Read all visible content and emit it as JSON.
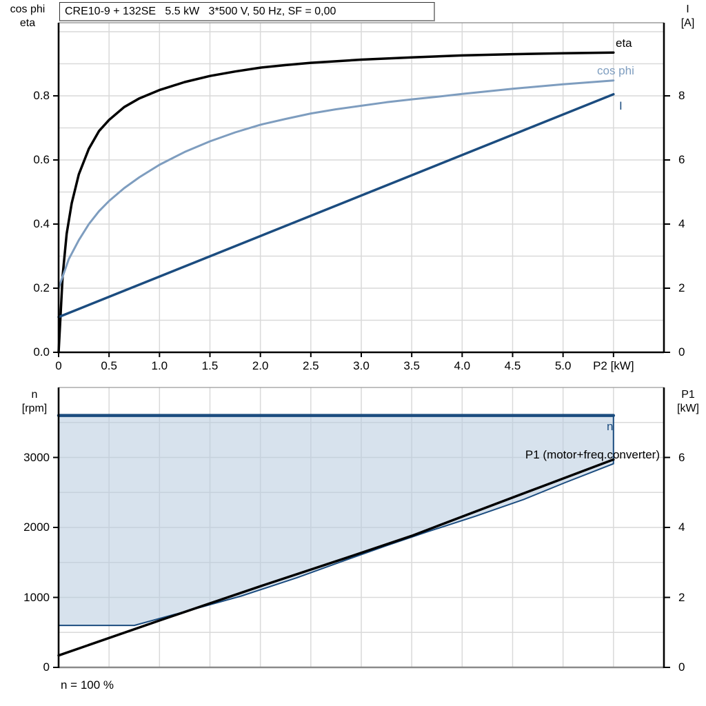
{
  "colors": {
    "black": "#000000",
    "steel_blue": "#7e9dbf",
    "dark_blue": "#1b4c7f",
    "area_fill": "#b7cbde",
    "gridline": "#d9d9d9",
    "frame_gray": "#9a9a9a"
  },
  "chart_data": [
    {
      "type": "line",
      "title": "CRE10-9 + 132SE   5.5 kW   3*500 V, 50 Hz, SF = 0,00",
      "x_axis": {
        "label": "P2 [kW]",
        "range": [
          0,
          6
        ],
        "grid_step": 0.5,
        "tick_values": [
          0,
          0.5,
          1.0,
          1.5,
          2.0,
          2.5,
          3.0,
          3.5,
          4.0,
          4.5,
          5.0
        ],
        "tick_labels": [
          "0",
          "0.5",
          "1.0",
          "1.5",
          "2.0",
          "2.5",
          "3.0",
          "3.5",
          "4.0",
          "4.5",
          "5.0"
        ],
        "axis_label_at": 5.5
      },
      "y_left": {
        "label_lines": [
          "cos phi",
          "eta"
        ],
        "range": [
          0,
          1.028
        ],
        "grid_step": 0.1,
        "tick_values": [
          0,
          0.2,
          0.4,
          0.6,
          0.8
        ],
        "tick_labels": [
          "0.0",
          "0.2",
          "0.4",
          "0.6",
          "0.8"
        ]
      },
      "y_right": {
        "label_lines": [
          "I",
          "[A]"
        ],
        "range": [
          0,
          10.28
        ],
        "grid_step": 1,
        "tick_values": [
          0,
          2,
          4,
          6,
          8
        ],
        "tick_labels": [
          "0",
          "2",
          "4",
          "6",
          "8"
        ]
      },
      "series": [
        {
          "name": "eta",
          "axis": "left",
          "color": "#000000",
          "width": 3.5,
          "points": [
            [
              0,
              0
            ],
            [
              0.04,
              0.24
            ],
            [
              0.08,
              0.37
            ],
            [
              0.13,
              0.465
            ],
            [
              0.2,
              0.555
            ],
            [
              0.3,
              0.635
            ],
            [
              0.4,
              0.69
            ],
            [
              0.5,
              0.725
            ],
            [
              0.65,
              0.765
            ],
            [
              0.8,
              0.792
            ],
            [
              1.0,
              0.818
            ],
            [
              1.25,
              0.843
            ],
            [
              1.5,
              0.862
            ],
            [
              1.75,
              0.876
            ],
            [
              2.0,
              0.888
            ],
            [
              2.25,
              0.896
            ],
            [
              2.5,
              0.903
            ],
            [
              3.0,
              0.913
            ],
            [
              3.5,
              0.92
            ],
            [
              4.0,
              0.926
            ],
            [
              4.5,
              0.93
            ],
            [
              5.0,
              0.933
            ],
            [
              5.5,
              0.935
            ]
          ]
        },
        {
          "name": "cos phi",
          "axis": "left",
          "color": "#7e9dbf",
          "width": 3,
          "points": [
            [
              0,
              0.2
            ],
            [
              0.1,
              0.29
            ],
            [
              0.2,
              0.35
            ],
            [
              0.3,
              0.4
            ],
            [
              0.4,
              0.44
            ],
            [
              0.5,
              0.472
            ],
            [
              0.65,
              0.512
            ],
            [
              0.8,
              0.546
            ],
            [
              1.0,
              0.585
            ],
            [
              1.25,
              0.625
            ],
            [
              1.5,
              0.658
            ],
            [
              1.75,
              0.686
            ],
            [
              2.0,
              0.71
            ],
            [
              2.25,
              0.728
            ],
            [
              2.5,
              0.745
            ],
            [
              2.75,
              0.758
            ],
            [
              3.0,
              0.769
            ],
            [
              3.25,
              0.78
            ],
            [
              3.5,
              0.789
            ],
            [
              3.75,
              0.797
            ],
            [
              4.0,
              0.806
            ],
            [
              4.25,
              0.814
            ],
            [
              4.5,
              0.822
            ],
            [
              4.75,
              0.829
            ],
            [
              5.0,
              0.836
            ],
            [
              5.25,
              0.842
            ],
            [
              5.5,
              0.848
            ]
          ]
        },
        {
          "name": "I",
          "axis": "right",
          "color": "#1b4c7f",
          "width": 3.5,
          "points": [
            [
              0,
              1.1
            ],
            [
              5.5,
              8.05
            ]
          ]
        }
      ]
    },
    {
      "type": "line-area",
      "x_axis": {
        "label": "",
        "range": [
          0,
          6
        ],
        "grid_step": 0.5,
        "tick_values": [],
        "tick_labels": []
      },
      "y_left": {
        "label_lines": [
          "n",
          "[rpm]"
        ],
        "range": [
          0,
          4000
        ],
        "grid_step": 500,
        "tick_values": [
          0,
          1000,
          2000,
          3000
        ],
        "tick_labels": [
          "0",
          "1000",
          "2000",
          "3000"
        ]
      },
      "y_right": {
        "label_lines": [
          "P1",
          "[kW]"
        ],
        "range": [
          0,
          8
        ],
        "grid_step": 1,
        "tick_values": [
          0,
          2,
          4,
          6
        ],
        "tick_labels": [
          "0",
          "2",
          "4",
          "6"
        ]
      },
      "area": {
        "upper_rpm": 3600,
        "x_end": 5.5,
        "fill": "#b7cbde",
        "opacity": 0.55,
        "edge_color": "#1b4c7f",
        "lower_points_rpm": [
          [
            0,
            600
          ],
          [
            0.75,
            600
          ],
          [
            1.26,
            800
          ],
          [
            1.81,
            1020
          ],
          [
            2.36,
            1280
          ],
          [
            2.84,
            1530
          ],
          [
            3.25,
            1740
          ],
          [
            3.66,
            1940
          ],
          [
            4.13,
            2160
          ],
          [
            4.61,
            2400
          ],
          [
            5.02,
            2640
          ],
          [
            5.5,
            2910
          ]
        ]
      },
      "series": [
        {
          "name": "n",
          "axis": "left",
          "color": "#1b4c7f",
          "width": 4.5,
          "points": [
            [
              0,
              3600
            ],
            [
              5.5,
              3600
            ]
          ]
        },
        {
          "name": "P1 (motor+freq.converter)",
          "axis": "right",
          "color": "#000000",
          "width": 3.5,
          "points": [
            [
              0,
              0.34
            ],
            [
              1.0,
              1.34
            ],
            [
              2.0,
              2.32
            ],
            [
              2.84,
              3.12
            ],
            [
              3.5,
              3.76
            ],
            [
              4.1,
              4.42
            ],
            [
              4.8,
              5.18
            ],
            [
              5.5,
              5.94
            ]
          ]
        }
      ],
      "footnote": "n = 100 %"
    }
  ]
}
